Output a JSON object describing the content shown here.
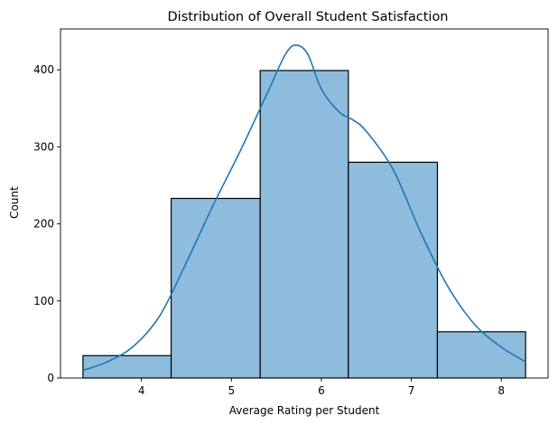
{
  "chart_data": {
    "type": "bar",
    "title": "Distribution of Overall Student Satisfaction",
    "xlabel": "Average Rating per Student",
    "ylabel": "Count",
    "bins": [
      {
        "x0": 3.35,
        "x1": 4.33,
        "count": 29
      },
      {
        "x0": 4.33,
        "x1": 5.32,
        "count": 233
      },
      {
        "x0": 5.32,
        "x1": 6.3,
        "count": 399
      },
      {
        "x0": 6.3,
        "x1": 7.29,
        "count": 280
      },
      {
        "x0": 7.29,
        "x1": 8.27,
        "count": 60
      }
    ],
    "kde": {
      "x": [
        3.35,
        3.6,
        3.9,
        4.2,
        4.5,
        4.8,
        5.1,
        5.4,
        5.6,
        5.72,
        5.85,
        6.0,
        6.2,
        6.35,
        6.5,
        6.8,
        7.1,
        7.4,
        7.7,
        8.0,
        8.27
      ],
      "y": [
        10,
        20,
        40,
        80,
        150,
        225,
        295,
        370,
        420,
        432,
        420,
        375,
        345,
        335,
        320,
        270,
        190,
        120,
        70,
        40,
        21
      ]
    },
    "xticks": [
      4,
      5,
      6,
      7,
      8
    ],
    "yticks": [
      0,
      100,
      200,
      300,
      400
    ],
    "xlim": [
      3.1,
      8.52
    ],
    "ylim": [
      0,
      453
    ],
    "colors": {
      "bar_fill": "#8ebcdc",
      "bar_edge": "#000000",
      "kde_line": "#1f77b4"
    }
  }
}
